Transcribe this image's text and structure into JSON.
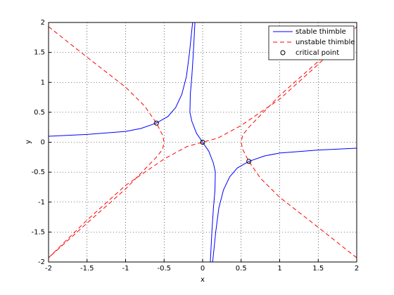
{
  "chart_data": {
    "type": "line",
    "x_label": "x",
    "y_label": "y",
    "xlim": [
      -2,
      2
    ],
    "ylim": [
      -2,
      2
    ],
    "xticks": [
      -2,
      -1.5,
      -1,
      -0.5,
      0,
      0.5,
      1,
      1.5,
      2
    ],
    "yticks": [
      -2,
      -1.5,
      -1,
      -0.5,
      0,
      0.5,
      1,
      1.5,
      2
    ],
    "grid": true,
    "legend": "top-right",
    "series": [
      {
        "name": "stable thimble",
        "color": "#0000ff",
        "style": "solid",
        "x": [
          -2,
          -1.5,
          -1,
          -0.8,
          -0.6,
          -0.45,
          -0.35,
          -0.27,
          -0.21,
          -0.17,
          -0.13,
          null,
          0,
          -0.08,
          -0.14,
          -0.165,
          -0.16,
          -0.14,
          -0.12,
          -0.1,
          null,
          2,
          1.5,
          1,
          0.8,
          0.6,
          0.45,
          0.35,
          0.27,
          0.21,
          0.17,
          0.13,
          null,
          0,
          0.08,
          0.14,
          0.165,
          0.16,
          0.14,
          0.12,
          0.1
        ],
        "values": [
          0.1,
          0.13,
          0.18,
          0.23,
          0.32,
          0.43,
          0.58,
          0.8,
          1.1,
          1.5,
          2,
          null,
          0,
          0.15,
          0.35,
          0.5,
          0.8,
          1.1,
          1.5,
          2,
          null,
          -0.1,
          -0.13,
          -0.18,
          -0.23,
          -0.32,
          -0.43,
          -0.58,
          -0.8,
          -1.1,
          -1.5,
          -2,
          null,
          0,
          -0.15,
          -0.35,
          -0.5,
          -0.8,
          -1.1,
          -1.5,
          -2
        ]
      },
      {
        "name": "unstable thimble",
        "color": "#ff0000",
        "style": "dashed",
        "x": [
          -2,
          -1.5,
          -1,
          -0.75,
          -0.6,
          -0.52,
          -0.5,
          -0.52,
          -0.6,
          -0.75,
          -1,
          -1.5,
          -2,
          null,
          2,
          1.5,
          1,
          0.75,
          0.6,
          0.52,
          0.5,
          0.52,
          0.6,
          0.75,
          1,
          1.5,
          2,
          null,
          -2,
          -1.5,
          -1,
          -0.5,
          -0.2,
          0,
          0.2,
          0.5,
          1,
          1.5,
          2
        ],
        "values": [
          1.93,
          1.42,
          0.92,
          0.6,
          0.32,
          0.12,
          0,
          -0.12,
          -0.25,
          -0.45,
          -0.78,
          -1.35,
          -1.93,
          null,
          -1.93,
          -1.42,
          -0.92,
          -0.6,
          -0.32,
          -0.12,
          0,
          0.12,
          0.25,
          0.45,
          0.78,
          1.35,
          1.93,
          null,
          -1.93,
          -1.3,
          -0.72,
          -0.28,
          -0.07,
          0,
          0.07,
          0.28,
          0.72,
          1.3,
          1.93
        ]
      },
      {
        "name": "critical point",
        "color": "#000000",
        "style": "marker",
        "x": [
          -0.6,
          0,
          0.6
        ],
        "values": [
          0.32,
          0,
          -0.32
        ]
      }
    ]
  }
}
